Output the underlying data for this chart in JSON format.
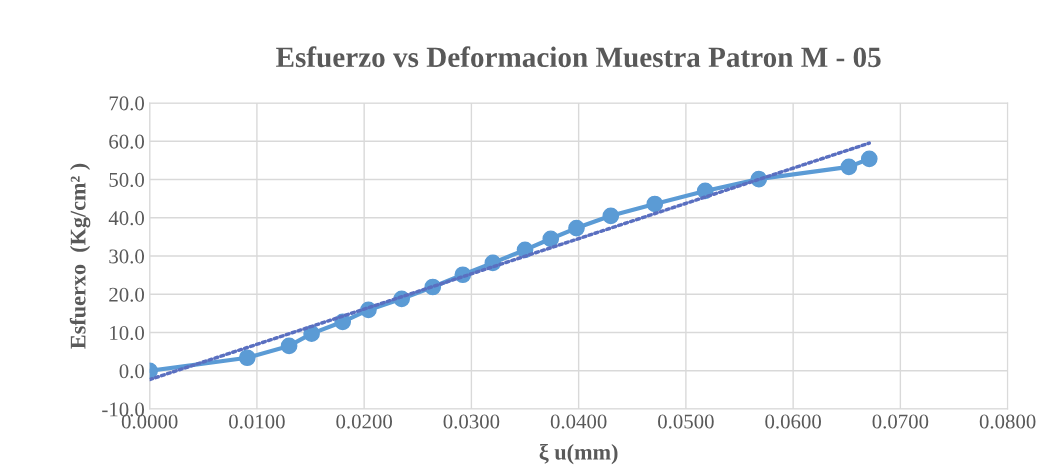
{
  "chart_data": {
    "type": "line",
    "title": "Esfuerzo vs Deformacion Muestra Patron M - 05",
    "xlabel": "ξ u(mm)",
    "ylabel": "Esfuerxo  (Kg/cm² )",
    "series": [
      {
        "color": "#5b9bd5",
        "marker": "circle",
        "line_style": "solid",
        "x": [
          0,
          0.0091,
          0.013,
          0.0151,
          0.018,
          0.0204,
          0.0235,
          0.0264,
          0.0292,
          0.032,
          0.035,
          0.0374,
          0.0398,
          0.043,
          0.0471,
          0.0518,
          0.0568,
          0.0652,
          0.0671
        ],
        "values": [
          0,
          3.4,
          6.5,
          9.7,
          12.8,
          15.9,
          18.8,
          21.9,
          25.1,
          28.2,
          31.6,
          34.5,
          37.3,
          40.5,
          43.6,
          47.0,
          50.1,
          53.3,
          55.4
        ]
      },
      {
        "type": "line",
        "color": "#5a6fc0",
        "marker": "none",
        "line_style": "dotted",
        "x": [
          0,
          0.0671
        ],
        "values": [
          -2.3,
          59.5
        ]
      }
    ],
    "xlim": [
      0,
      0.08
    ],
    "xticks": [
      {
        "value": 0,
        "label": "0.0000"
      },
      {
        "value": 0.01,
        "label": "0.0100"
      },
      {
        "value": 0.02,
        "label": "0.0200"
      },
      {
        "value": 0.03,
        "label": "0.0300"
      },
      {
        "value": 0.04,
        "label": "0.0400"
      },
      {
        "value": 0.05,
        "label": "0.0500"
      },
      {
        "value": 0.06,
        "label": "0.0600"
      },
      {
        "value": 0.07,
        "label": "0.0700"
      },
      {
        "value": 0.08,
        "label": "0.0800"
      }
    ],
    "ylim": [
      -10,
      70
    ],
    "yticks": [
      {
        "value": -10,
        "label": "-10.0"
      },
      {
        "value": 0,
        "label": "0.0"
      },
      {
        "value": 10,
        "label": "10.0"
      },
      {
        "value": 20,
        "label": "20.0"
      },
      {
        "value": 30,
        "label": "30.0"
      },
      {
        "value": 40,
        "label": "40.0"
      },
      {
        "value": 50,
        "label": "50.0"
      },
      {
        "value": 60,
        "label": "60.0"
      },
      {
        "value": 70,
        "label": "70.0"
      }
    ],
    "grid": true,
    "legend": false
  }
}
